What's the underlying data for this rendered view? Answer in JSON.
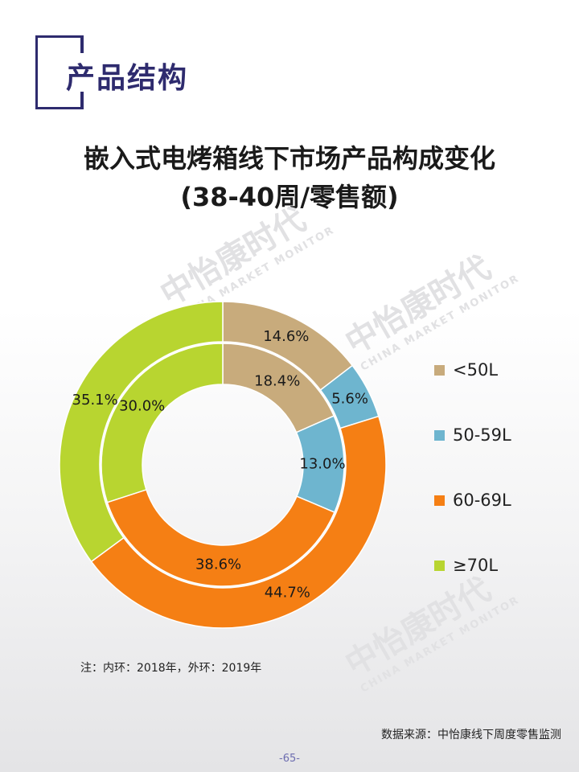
{
  "header": {
    "section_title": "产品结构"
  },
  "watermark": {
    "cn": "中怡康时代",
    "en": "CHINA MARKET MONITOR"
  },
  "chart_data": {
    "type": "pie",
    "subtype": "double-donut",
    "title_line1": "嵌入式电烤箱线下市场产品构成变化",
    "title_line2": "(38-40周/零售额)",
    "categories": [
      "<50L",
      "50-59L",
      "60-69L",
      "≥70L"
    ],
    "colors": [
      "#c8ab7c",
      "#6eb5cf",
      "#f57f14",
      "#b8d530"
    ],
    "series": [
      {
        "ring": "inner",
        "values": [
          18.4,
          13.0,
          38.6,
          30.0
        ],
        "labels": [
          "18.4%",
          "13.0%",
          "38.6%",
          "30.0%"
        ]
      },
      {
        "ring": "outer",
        "values": [
          14.6,
          5.6,
          44.7,
          35.1
        ],
        "labels": [
          "14.6%",
          "5.6%",
          "44.7%",
          "35.1%"
        ]
      }
    ],
    "legend_position": "right"
  },
  "note": "注：内环：2018年，外环：2019年",
  "source": "数据来源：中怡康线下周度零售监测",
  "page_number": "-65-"
}
